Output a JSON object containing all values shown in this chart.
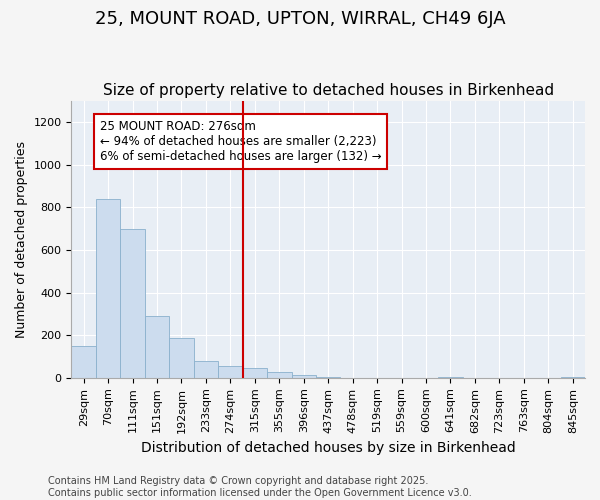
{
  "title": "25, MOUNT ROAD, UPTON, WIRRAL, CH49 6JA",
  "subtitle": "Size of property relative to detached houses in Birkenhead",
  "xlabel": "Distribution of detached houses by size in Birkenhead",
  "ylabel": "Number of detached properties",
  "categories": [
    "29sqm",
    "70sqm",
    "111sqm",
    "151sqm",
    "192sqm",
    "233sqm",
    "274sqm",
    "315sqm",
    "355sqm",
    "396sqm",
    "437sqm",
    "478sqm",
    "519sqm",
    "559sqm",
    "600sqm",
    "641sqm",
    "682sqm",
    "723sqm",
    "763sqm",
    "804sqm",
    "845sqm"
  ],
  "values": [
    150,
    840,
    700,
    290,
    185,
    80,
    55,
    45,
    25,
    15,
    5,
    0,
    0,
    0,
    0,
    5,
    0,
    0,
    0,
    0,
    5
  ],
  "bar_color": "#ccdcee",
  "bar_edge_color": "#8ab0cc",
  "vline_x_index": 6,
  "vline_color": "#cc0000",
  "annotation_text": "25 MOUNT ROAD: 276sqm\n← 94% of detached houses are smaller (2,223)\n6% of semi-detached houses are larger (132) →",
  "annotation_box_color": "#ffffff",
  "annotation_box_edge": "#cc0000",
  "ylim": [
    0,
    1300
  ],
  "yticks": [
    0,
    200,
    400,
    600,
    800,
    1000,
    1200
  ],
  "fig_background_color": "#f5f5f5",
  "plot_background_color": "#e8eef5",
  "footer": "Contains HM Land Registry data © Crown copyright and database right 2025.\nContains public sector information licensed under the Open Government Licence v3.0.",
  "title_fontsize": 13,
  "subtitle_fontsize": 11,
  "xlabel_fontsize": 10,
  "ylabel_fontsize": 9,
  "tick_fontsize": 8,
  "annotation_fontsize": 8.5,
  "footer_fontsize": 7
}
